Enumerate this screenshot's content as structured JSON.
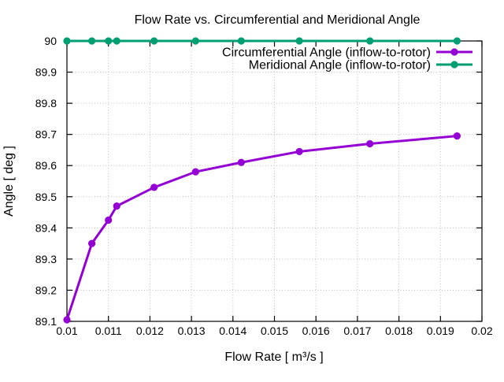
{
  "chart_data": {
    "type": "line",
    "title": "Flow Rate vs. Circumferential and Meridional Angle",
    "xlabel": "Flow Rate [ m³/s ]",
    "ylabel": "Angle [ deg ]",
    "xlim": [
      0.01,
      0.02
    ],
    "ylim": [
      89.1,
      90
    ],
    "grid": true,
    "legend_position": "inside-top-right",
    "xticks": {
      "values": [
        0.01,
        0.011,
        0.012,
        0.013,
        0.014,
        0.015,
        0.016,
        0.017,
        0.018,
        0.019,
        0.02
      ],
      "labels": [
        "0.01",
        "0.011",
        "0.012",
        "0.013",
        "0.014",
        "0.015",
        "0.016",
        "0.017",
        "0.018",
        "0.019",
        "0.02"
      ]
    },
    "yticks": {
      "values": [
        89.1,
        89.2,
        89.3,
        89.4,
        89.5,
        89.6,
        89.7,
        89.8,
        89.9,
        90
      ],
      "labels": [
        "89.1",
        "89.2",
        "89.3",
        "89.4",
        "89.5",
        "89.6",
        "89.7",
        "89.8",
        "89.9",
        "90"
      ]
    },
    "x": [
      0.01,
      0.0106,
      0.011,
      0.0112,
      0.0121,
      0.0131,
      0.0142,
      0.0156,
      0.0173,
      0.0194
    ],
    "series": [
      {
        "name": "Circumferential Angle (inflow-to-rotor)",
        "color": "#9400d3",
        "values": [
          89.105,
          89.35,
          89.425,
          89.47,
          89.53,
          89.58,
          89.61,
          89.645,
          89.67,
          89.695
        ]
      },
      {
        "name": "Meridional Angle (inflow-to-rotor)",
        "color": "#009e73",
        "values": [
          90,
          90,
          90,
          90,
          90,
          90,
          90,
          90,
          90,
          90
        ]
      }
    ],
    "colors": {
      "background": "#ffffff",
      "border": "#000000",
      "grid": "#c0c0c0",
      "text": "#000000"
    }
  }
}
